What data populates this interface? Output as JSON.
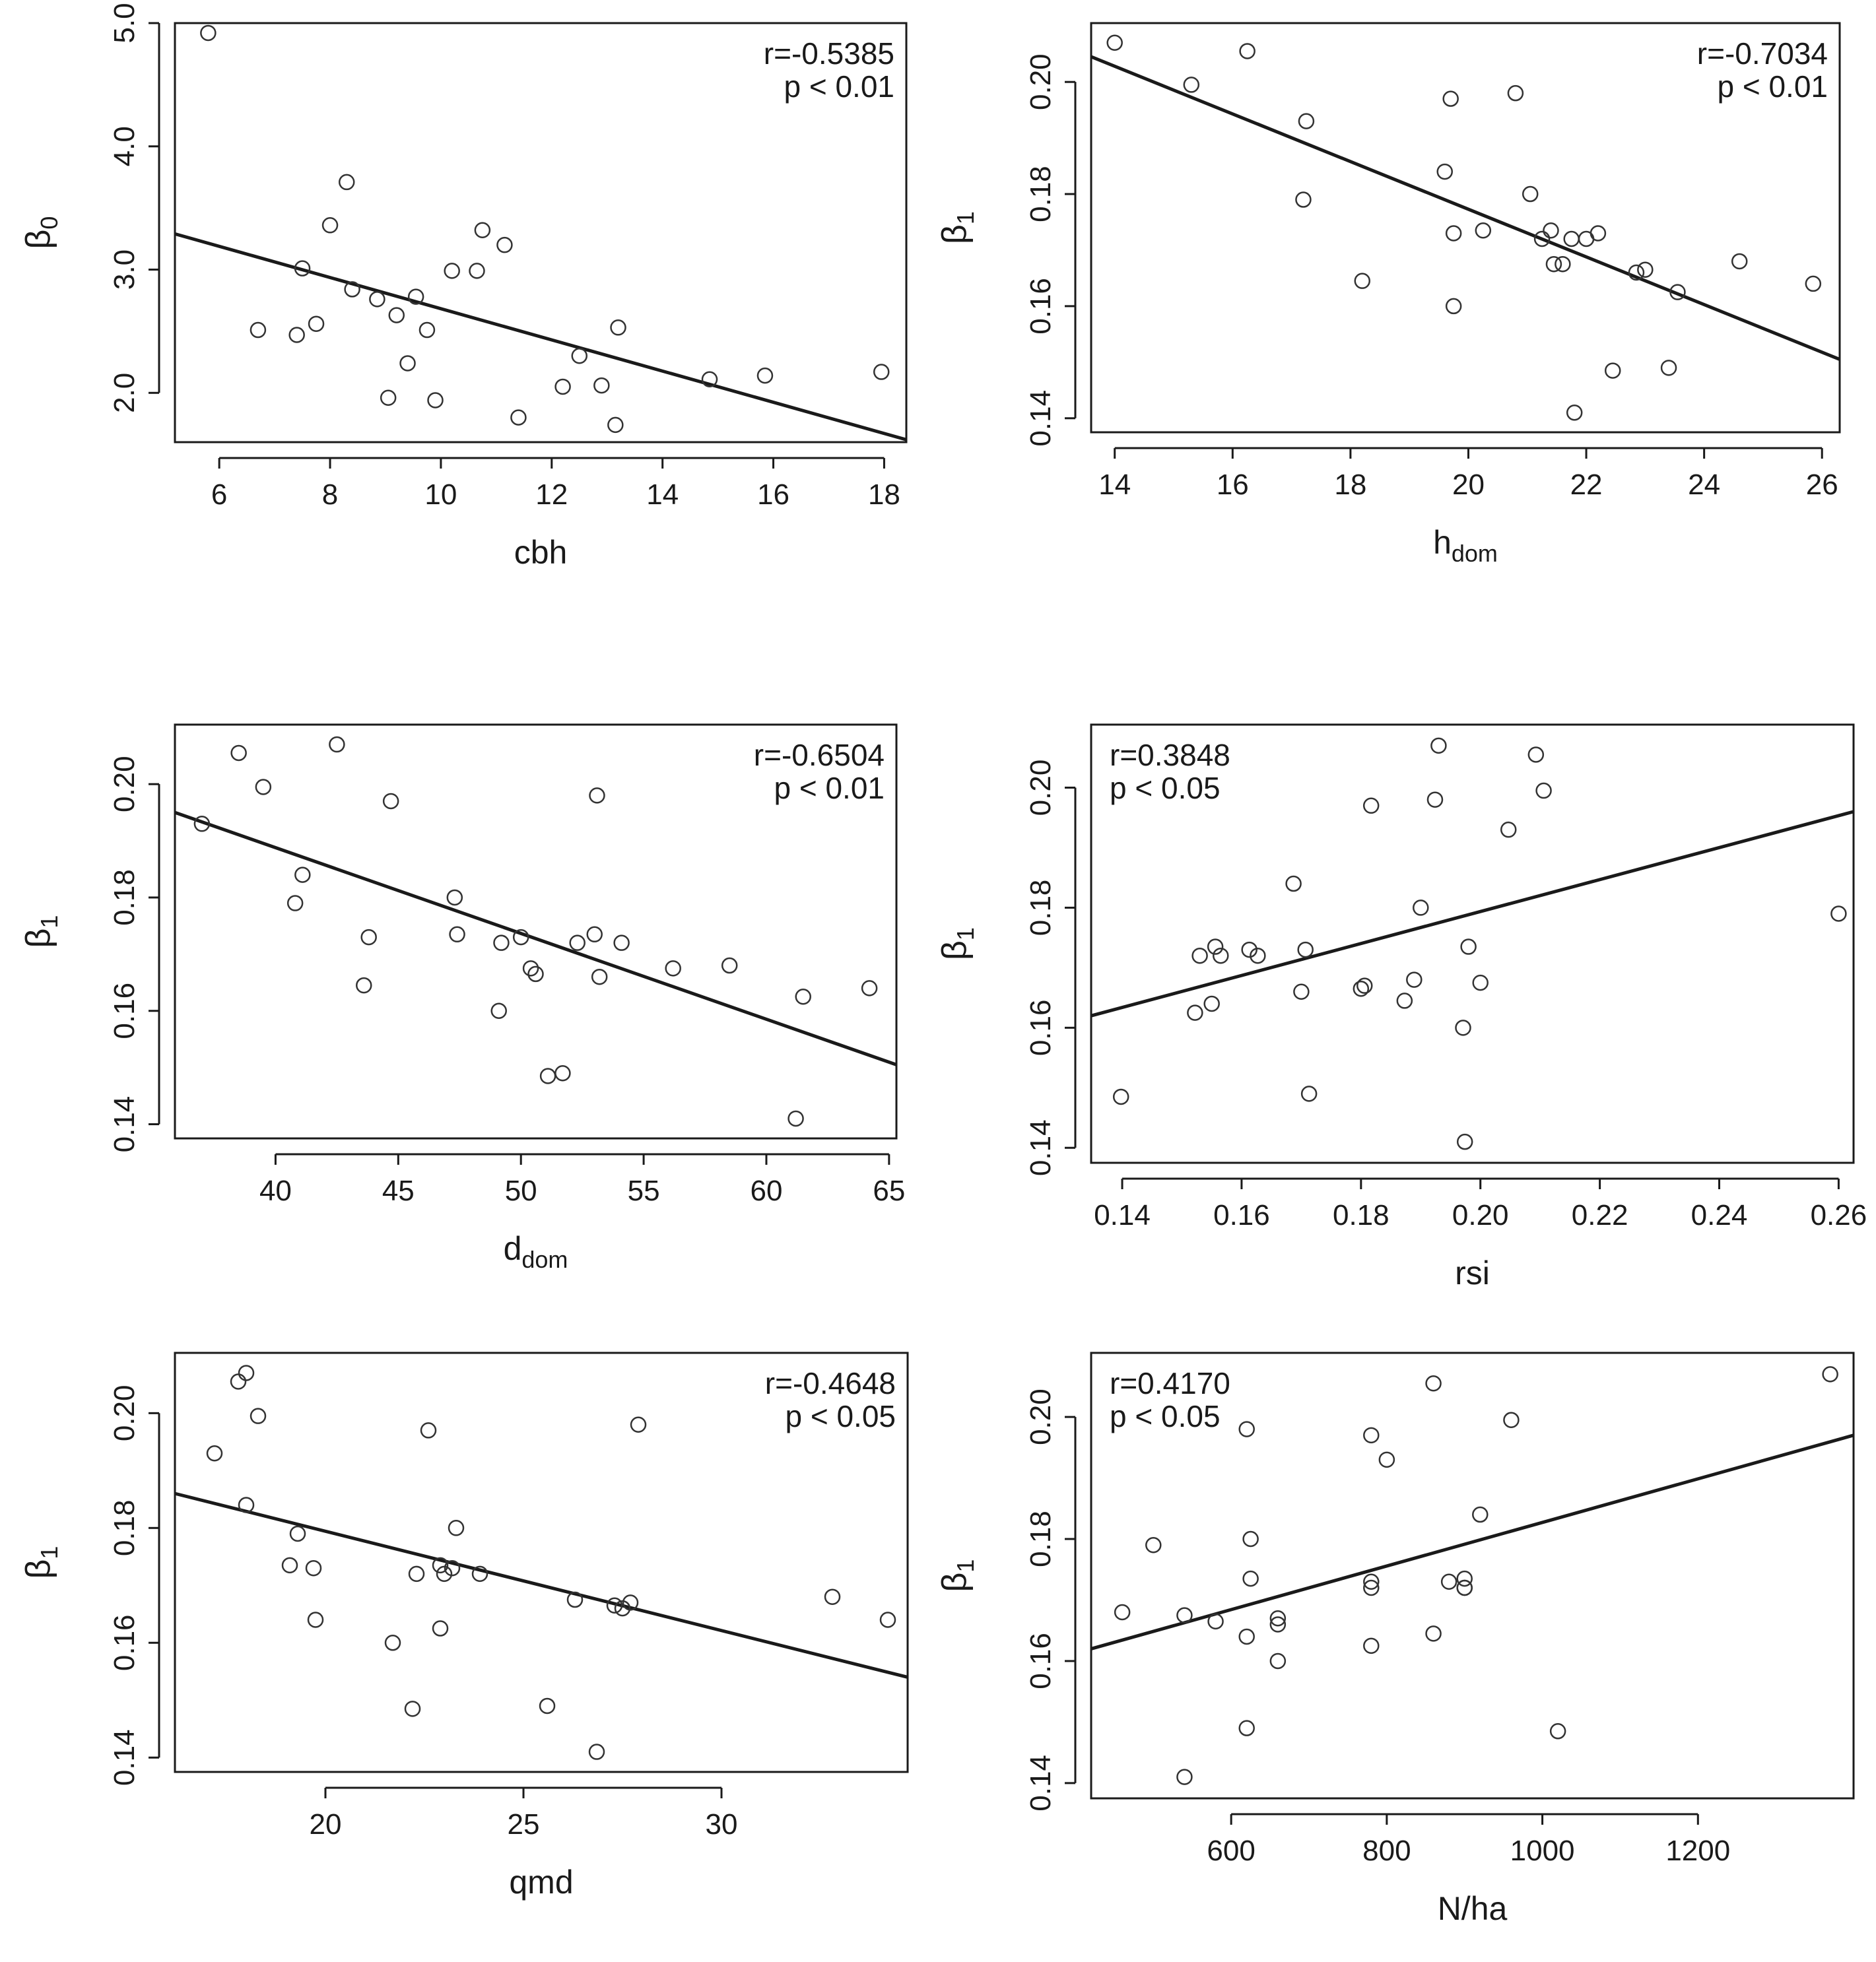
{
  "chart_data": [
    {
      "type": "scatter",
      "xlabel": "cbh",
      "xlabel_sub": "",
      "ylabel": "β",
      "ylabel_sub": "0",
      "annotation": [
        "r=-0.5385",
        "p < 0.01"
      ],
      "annotation_pos": "top-right",
      "xlim": [
        5.2,
        18.4
      ],
      "ylim": [
        1.6,
        5.0
      ],
      "xticks": [
        6,
        8,
        10,
        12,
        14,
        16,
        18
      ],
      "yticks": [
        2.0,
        3.0,
        4.0,
        5.0
      ],
      "ytick_labels": [
        "2.0",
        "3.0",
        "4.0",
        "5.0"
      ],
      "fit": [
        [
          5.2,
          3.29
        ],
        [
          18.4,
          1.62
        ]
      ],
      "x": [
        5.8,
        6.7,
        7.4,
        7.5,
        7.75,
        8.0,
        8.3,
        8.4,
        8.85,
        9.05,
        9.2,
        9.4,
        9.55,
        9.75,
        9.9,
        10.2,
        10.65,
        10.75,
        11.15,
        11.4,
        12.2,
        12.5,
        12.9,
        13.15,
        13.2,
        14.85,
        15.85,
        17.95
      ],
      "y": [
        4.92,
        2.51,
        2.47,
        3.01,
        2.56,
        3.36,
        3.71,
        2.84,
        2.76,
        1.96,
        2.63,
        2.24,
        2.78,
        2.51,
        1.94,
        2.99,
        2.99,
        3.32,
        3.2,
        1.8,
        2.05,
        2.3,
        2.06,
        1.74,
        2.53,
        2.11,
        2.14,
        2.17
      ]
    },
    {
      "type": "scatter",
      "xlabel": "h",
      "xlabel_sub": "dom",
      "ylabel": "β",
      "ylabel_sub": "1",
      "annotation": [
        "r=-0.7034",
        "p < 0.01"
      ],
      "annotation_pos": "top-right",
      "xlim": [
        13.6,
        26.3
      ],
      "ylim": [
        0.1375,
        0.2105
      ],
      "xticks": [
        14,
        16,
        18,
        20,
        22,
        24,
        26
      ],
      "yticks": [
        0.14,
        0.16,
        0.18,
        0.2
      ],
      "ytick_labels": [
        "0.14",
        "0.16",
        "0.18",
        "0.20"
      ],
      "fit": [
        [
          13.6,
          0.2045
        ],
        [
          26.3,
          0.1505
        ]
      ],
      "x": [
        14.0,
        15.3,
        16.25,
        17.2,
        17.25,
        18.2,
        19.6,
        19.7,
        19.75,
        19.75,
        20.25,
        20.8,
        21.05,
        21.25,
        21.4,
        21.45,
        21.6,
        21.75,
        21.8,
        22.0,
        22.2,
        22.45,
        22.85,
        23.0,
        23.4,
        23.55,
        24.6,
        25.85
      ],
      "y": [
        0.207,
        0.1995,
        0.2055,
        0.179,
        0.193,
        0.1645,
        0.184,
        0.197,
        0.173,
        0.16,
        0.1735,
        0.198,
        0.18,
        0.172,
        0.1735,
        0.1675,
        0.1675,
        0.172,
        0.141,
        0.172,
        0.173,
        0.1485,
        0.166,
        0.1665,
        0.149,
        0.1625,
        0.168,
        0.164
      ]
    },
    {
      "type": "scatter",
      "xlabel": "d",
      "xlabel_sub": "dom",
      "ylabel": "β",
      "ylabel_sub": "1",
      "annotation": [
        "r=-0.6504",
        "p < 0.01"
      ],
      "annotation_pos": "top-right",
      "xlim": [
        35.9,
        65.3
      ],
      "ylim": [
        0.1375,
        0.2105
      ],
      "xticks": [
        40,
        45,
        50,
        55,
        60,
        65
      ],
      "yticks": [
        0.14,
        0.16,
        0.18,
        0.2
      ],
      "ytick_labels": [
        "0.14",
        "0.16",
        "0.18",
        "0.20"
      ],
      "fit": [
        [
          35.9,
          0.195
        ],
        [
          65.3,
          0.1505
        ]
      ],
      "x": [
        37.0,
        38.5,
        39.5,
        40.8,
        41.1,
        42.5,
        43.6,
        43.8,
        44.7,
        47.3,
        47.4,
        49.1,
        49.2,
        50.0,
        50.4,
        50.6,
        51.1,
        51.7,
        52.3,
        53.0,
        53.1,
        53.2,
        54.1,
        56.2,
        58.5,
        61.2,
        61.5,
        64.2
      ],
      "y": [
        0.193,
        0.2055,
        0.1995,
        0.179,
        0.184,
        0.207,
        0.1645,
        0.173,
        0.197,
        0.18,
        0.1735,
        0.16,
        0.172,
        0.173,
        0.1675,
        0.1665,
        0.1485,
        0.149,
        0.172,
        0.1735,
        0.198,
        0.166,
        0.172,
        0.1675,
        0.168,
        0.141,
        0.1625,
        0.164
      ]
    },
    {
      "type": "scatter",
      "xlabel": "rsi",
      "xlabel_sub": "",
      "ylabel": "β",
      "ylabel_sub": "1",
      "annotation": [
        "r=0.3848",
        "p < 0.05"
      ],
      "annotation_pos": "top-left",
      "xlim": [
        0.1348,
        0.2625
      ],
      "ylim": [
        0.1375,
        0.2105
      ],
      "xticks": [
        0.14,
        0.16,
        0.18,
        0.2,
        0.22,
        0.24,
        0.26
      ],
      "xtick_labels": [
        "0.14",
        "0.16",
        "0.18",
        "0.20",
        "0.22",
        "0.24",
        "0.26"
      ],
      "yticks": [
        0.14,
        0.16,
        0.18,
        0.2
      ],
      "ytick_labels": [
        "0.14",
        "0.16",
        "0.18",
        "0.20"
      ],
      "fit": [
        [
          0.1348,
          0.162
        ],
        [
          0.2625,
          0.196
        ]
      ],
      "x": [
        0.1398,
        0.1522,
        0.153,
        0.155,
        0.1556,
        0.1565,
        0.1613,
        0.1627,
        0.1687,
        0.17,
        0.1707,
        0.1713,
        0.18,
        0.1806,
        0.1817,
        0.1873,
        0.1889,
        0.19,
        0.1924,
        0.193,
        0.1971,
        0.1974,
        0.198,
        0.2,
        0.2047,
        0.2093,
        0.2106,
        0.26
      ],
      "y": [
        0.1485,
        0.1625,
        0.172,
        0.164,
        0.1735,
        0.172,
        0.173,
        0.172,
        0.184,
        0.166,
        0.173,
        0.149,
        0.1665,
        0.167,
        0.197,
        0.1645,
        0.168,
        0.18,
        0.198,
        0.207,
        0.16,
        0.141,
        0.1735,
        0.1675,
        0.193,
        0.2055,
        0.1995,
        0.179
      ]
    },
    {
      "type": "scatter",
      "xlabel": "qmd",
      "xlabel_sub": "",
      "ylabel": "β",
      "ylabel_sub": "1",
      "annotation": [
        "r=-0.4648",
        "p < 0.05"
      ],
      "annotation_pos": "top-right",
      "xlim": [
        16.2,
        34.7
      ],
      "ylim": [
        0.1375,
        0.2105
      ],
      "xticks": [
        20,
        25,
        30
      ],
      "yticks": [
        0.14,
        0.16,
        0.18,
        0.2
      ],
      "ytick_labels": [
        "0.14",
        "0.16",
        "0.18",
        "0.20"
      ],
      "fit": [
        [
          16.2,
          0.186
        ],
        [
          34.7,
          0.154
        ]
      ],
      "x": [
        17.2,
        17.8,
        18.0,
        18.0,
        18.3,
        19.1,
        19.3,
        19.7,
        19.75,
        21.7,
        22.2,
        22.3,
        22.6,
        22.9,
        22.9,
        23.0,
        23.2,
        23.3,
        23.9,
        25.6,
        26.3,
        26.85,
        27.3,
        27.5,
        27.7,
        27.9,
        32.8,
        34.2
      ],
      "y": [
        0.193,
        0.2055,
        0.207,
        0.184,
        0.1995,
        0.1735,
        0.179,
        0.173,
        0.164,
        0.16,
        0.1485,
        0.172,
        0.197,
        0.1625,
        0.1735,
        0.172,
        0.173,
        0.18,
        0.172,
        0.149,
        0.1675,
        0.141,
        0.1665,
        0.166,
        0.167,
        0.198,
        0.168,
        0.164
      ]
    },
    {
      "type": "scatter",
      "xlabel": "N/ha",
      "xlabel_sub": "",
      "ylabel": "β",
      "ylabel_sub": "1",
      "annotation": [
        "r=0.4170",
        "p < 0.05"
      ],
      "annotation_pos": "top-left",
      "xlim": [
        420,
        1400
      ],
      "ylim": [
        0.1375,
        0.2105
      ],
      "xticks": [
        600,
        800,
        1000,
        1200
      ],
      "yticks": [
        0.14,
        0.16,
        0.18,
        0.2
      ],
      "ytick_labels": [
        "0.14",
        "0.16",
        "0.18",
        "0.20"
      ],
      "fit": [
        [
          420,
          0.162
        ],
        [
          1400,
          0.197
        ]
      ],
      "x": [
        460,
        500,
        540,
        540,
        580,
        620,
        620,
        620,
        625,
        625,
        660,
        660,
        660,
        780,
        780,
        780,
        780,
        800,
        860,
        860,
        880,
        900,
        900,
        900,
        920,
        960,
        1020,
        1370
      ],
      "y": [
        0.168,
        0.179,
        0.1675,
        0.141,
        0.1665,
        0.198,
        0.164,
        0.149,
        0.1735,
        0.18,
        0.167,
        0.166,
        0.16,
        0.197,
        0.173,
        0.172,
        0.1625,
        0.193,
        0.2055,
        0.1645,
        0.173,
        0.1735,
        0.172,
        0.172,
        0.184,
        0.1995,
        0.1485,
        0.207
      ]
    }
  ]
}
